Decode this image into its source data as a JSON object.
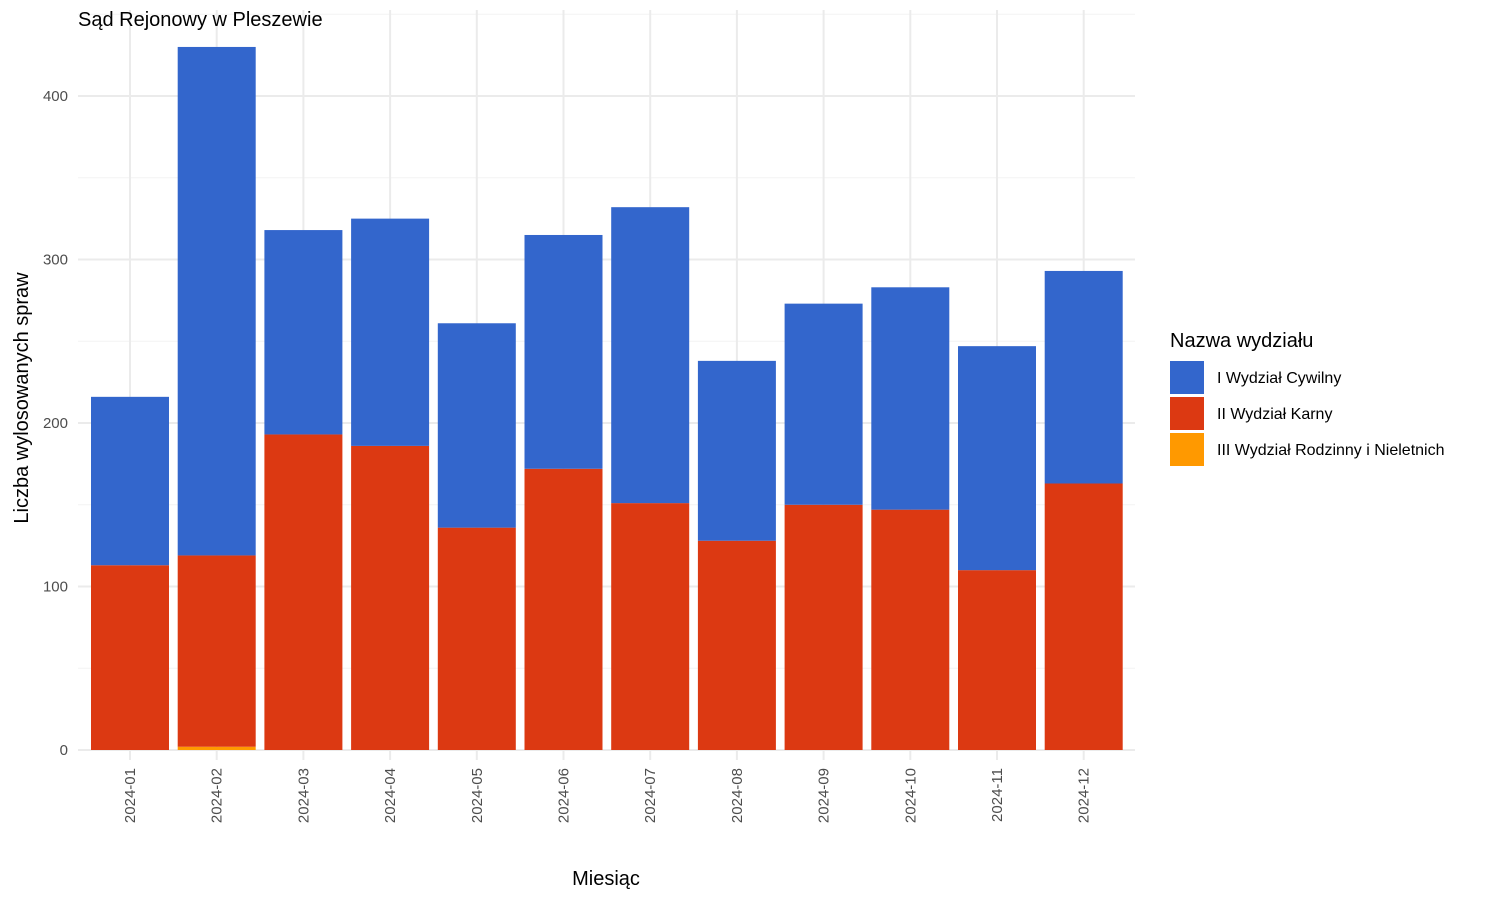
{
  "chart_data": {
    "type": "bar",
    "stacked": true,
    "title": "Sąd Rejonowy w Pleszewie",
    "xlabel": "Miesiąc",
    "ylabel": "Liczba wylosowanych spraw",
    "ylim": [
      0,
      450
    ],
    "yticks": [
      0,
      100,
      200,
      300,
      400
    ],
    "grid": true,
    "legend_title": "Nazwa wydziału",
    "legend_position": "right",
    "categories": [
      "2024-01",
      "2024-02",
      "2024-03",
      "2024-04",
      "2024-05",
      "2024-06",
      "2024-07",
      "2024-08",
      "2024-09",
      "2024-10",
      "2024-11",
      "2024-12"
    ],
    "series": [
      {
        "name": "III Wydział Rodzinny i Nieletnich",
        "color": "#ff9900",
        "values": [
          0,
          2,
          0,
          0,
          0,
          0,
          0,
          0,
          0,
          0,
          0,
          0
        ]
      },
      {
        "name": "II Wydział Karny",
        "color": "#dc3912",
        "values": [
          113,
          117,
          193,
          186,
          136,
          172,
          151,
          128,
          150,
          147,
          110,
          163
        ]
      },
      {
        "name": "I Wydział Cywilny",
        "color": "#3366cc",
        "values": [
          103,
          311,
          125,
          139,
          125,
          143,
          181,
          110,
          123,
          136,
          137,
          130
        ]
      }
    ],
    "legend_order": [
      "I Wydział Cywilny",
      "II Wydział Karny",
      "III Wydział Rodzinny i Nieletnich"
    ]
  }
}
